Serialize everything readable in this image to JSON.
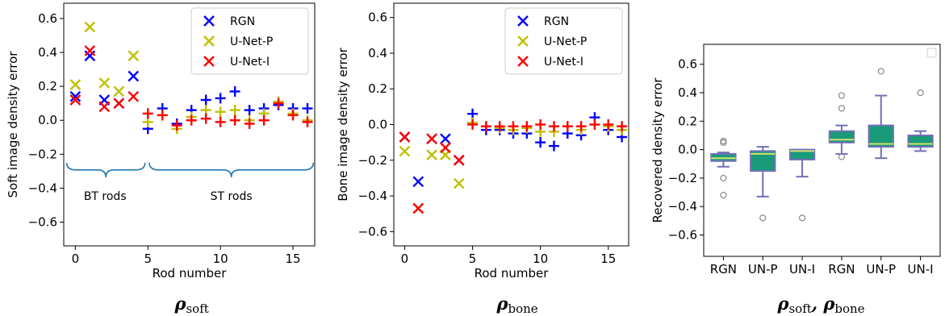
{
  "chart_data": [
    {
      "type": "scatter",
      "ylabel": "Soft image density error",
      "xlabel": "Rod number",
      "xlim": [
        -0.8,
        16.5
      ],
      "ylim": [
        -0.74,
        0.69
      ],
      "xticks": [
        0,
        5,
        10,
        15
      ],
      "yticks": [
        -0.6,
        -0.4,
        -0.2,
        0.0,
        0.2,
        0.4,
        0.6
      ],
      "legend": {
        "position": "top-right",
        "entries": [
          "RGN",
          "U-Net-P",
          "U-Net-I"
        ]
      },
      "colors": {
        "RGN": "#0000ff",
        "U-Net-P": "#bfbf00",
        "U-Net-I": "#ff0000"
      },
      "marker_switch_index": 5,
      "annotations": [
        "BT rods",
        "ST rods"
      ],
      "caption_symbol": "ρ",
      "caption_sub": "soft",
      "x": [
        0,
        1,
        2,
        3,
        4,
        5,
        6,
        7,
        8,
        9,
        10,
        11,
        12,
        13,
        14,
        15,
        16
      ],
      "series": [
        {
          "name": "RGN",
          "values": [
            0.14,
            0.38,
            0.12,
            0.1,
            0.26,
            -0.05,
            0.07,
            -0.02,
            0.06,
            0.12,
            0.13,
            0.17,
            0.06,
            0.07,
            0.09,
            0.07,
            0.07
          ]
        },
        {
          "name": "U-Net-P",
          "values": [
            0.21,
            0.55,
            0.22,
            0.17,
            0.38,
            -0.01,
            0.03,
            -0.05,
            0.02,
            0.06,
            0.05,
            0.06,
            0.0,
            0.04,
            0.11,
            0.04,
            0.0
          ]
        },
        {
          "name": "U-Net-I",
          "values": [
            0.12,
            0.41,
            0.08,
            0.1,
            0.14,
            0.04,
            0.03,
            -0.03,
            0.0,
            0.01,
            -0.01,
            0.0,
            -0.02,
            0.0,
            0.1,
            0.03,
            -0.01
          ]
        }
      ]
    },
    {
      "type": "scatter",
      "ylabel": "Bone image density error",
      "xlabel": "Rod number",
      "xlim": [
        -0.8,
        16.5
      ],
      "ylim": [
        -0.68,
        0.68
      ],
      "xticks": [
        0,
        5,
        10,
        15
      ],
      "yticks": [
        -0.6,
        -0.4,
        -0.2,
        0.0,
        0.2,
        0.4,
        0.6
      ],
      "legend": {
        "position": "top-right",
        "entries": [
          "RGN",
          "U-Net-P",
          "U-Net-I"
        ]
      },
      "colors": {
        "RGN": "#0000ff",
        "U-Net-P": "#bfbf00",
        "U-Net-I": "#ff0000"
      },
      "marker_switch_index": 5,
      "caption_symbol": "ρ",
      "caption_sub": "bone",
      "x": [
        0,
        1,
        2,
        3,
        4,
        5,
        6,
        7,
        8,
        9,
        10,
        11,
        12,
        13,
        14,
        15,
        16
      ],
      "series": [
        {
          "name": "RGN",
          "values": [
            -0.07,
            -0.32,
            -0.08,
            -0.08,
            -0.2,
            0.06,
            -0.03,
            -0.03,
            -0.05,
            -0.05,
            -0.1,
            -0.12,
            -0.05,
            -0.06,
            0.04,
            -0.03,
            -0.07
          ]
        },
        {
          "name": "U-Net-P",
          "values": [
            -0.15,
            -0.47,
            -0.17,
            -0.17,
            -0.33,
            0.01,
            -0.01,
            -0.02,
            -0.03,
            -0.02,
            -0.04,
            -0.04,
            -0.01,
            -0.03,
            0.0,
            -0.01,
            -0.03
          ]
        },
        {
          "name": "U-Net-I",
          "values": [
            -0.07,
            -0.47,
            -0.08,
            -0.13,
            -0.2,
            0.0,
            -0.01,
            -0.01,
            -0.01,
            -0.01,
            0.0,
            -0.01,
            -0.01,
            -0.01,
            0.0,
            0.0,
            -0.01
          ]
        }
      ]
    },
    {
      "type": "box",
      "ylabel": "Recovered density error",
      "ylim": [
        -0.75,
        0.74
      ],
      "yticks": [
        -0.6,
        -0.4,
        -0.2,
        0.0,
        0.2,
        0.4,
        0.6
      ],
      "categories": [
        "RGN",
        "UN-P",
        "UN-I",
        "RGN",
        "UN-P",
        "UN-I"
      ],
      "box_fill": "#1a9a78",
      "box_edge": "#7070b8",
      "median_color": "#d4e070",
      "caption_symbols": [
        "ρ",
        "ρ"
      ],
      "caption_subs": [
        "soft",
        "bone"
      ],
      "caption_sep": ",",
      "boxes": [
        {
          "whislo": -0.12,
          "q1": -0.08,
          "med": -0.06,
          "q3": -0.03,
          "whishi": -0.02,
          "fliers": [
            0.06,
            0.05,
            -0.2,
            -0.32
          ]
        },
        {
          "whislo": -0.33,
          "q1": -0.15,
          "med": -0.03,
          "q3": -0.01,
          "whishi": 0.02,
          "fliers": [
            -0.48
          ]
        },
        {
          "whislo": -0.19,
          "q1": -0.07,
          "med": -0.01,
          "q3": 0.0,
          "whishi": 0.0,
          "fliers": [
            -0.48
          ]
        },
        {
          "whislo": -0.03,
          "q1": 0.05,
          "med": 0.07,
          "q3": 0.13,
          "whishi": 0.17,
          "fliers": [
            0.38,
            0.29,
            -0.05
          ]
        },
        {
          "whislo": -0.06,
          "q1": 0.02,
          "med": 0.04,
          "q3": 0.17,
          "whishi": 0.38,
          "fliers": [
            0.55
          ]
        },
        {
          "whislo": -0.01,
          "q1": 0.02,
          "med": 0.04,
          "q3": 0.1,
          "whishi": 0.13,
          "fliers": [
            0.4
          ]
        }
      ]
    }
  ]
}
